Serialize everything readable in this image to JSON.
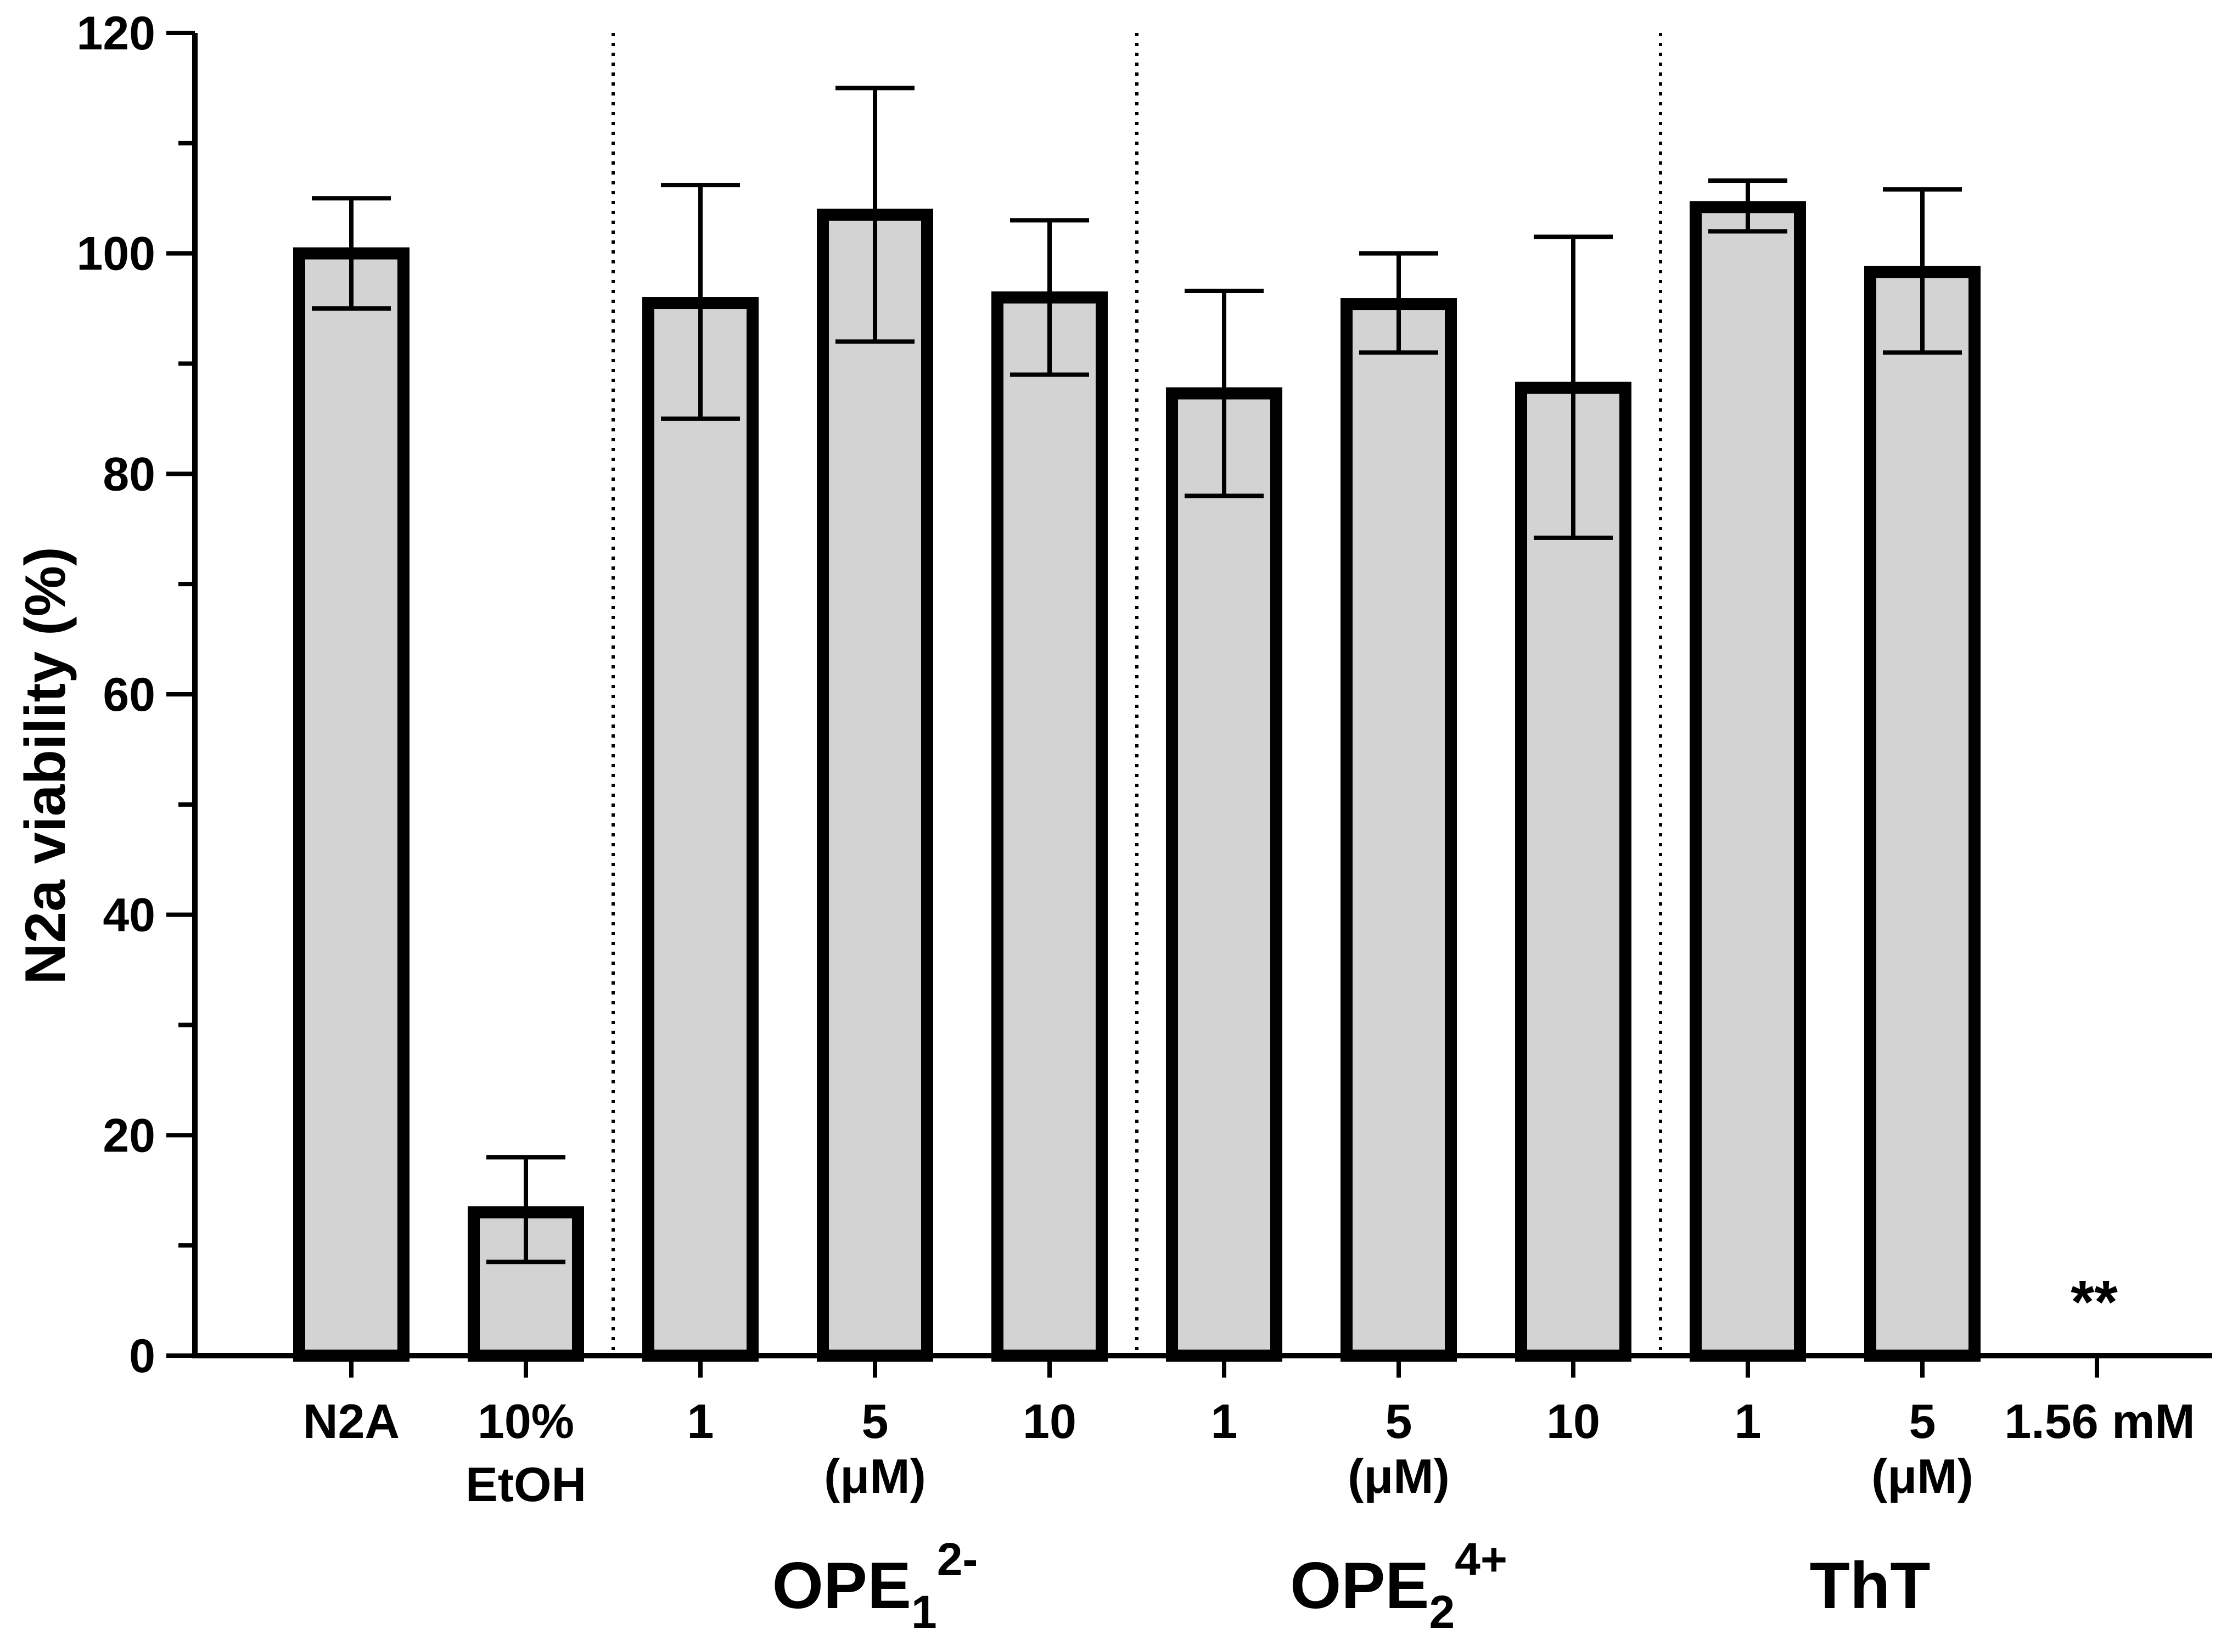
{
  "chart_data": {
    "type": "bar",
    "title": "",
    "xlabel": "",
    "ylabel": "N2a viability (%)",
    "ylim": [
      0,
      120
    ],
    "yticks": [
      0,
      20,
      40,
      60,
      80,
      100,
      120
    ],
    "grid": false,
    "bar_color": "#d3d3d3",
    "edge_color": "#000000",
    "categories": [
      "N2A",
      "10%",
      "1",
      "5",
      "10",
      "1",
      "5",
      "10",
      "1",
      "5",
      "1.56 mM"
    ],
    "category_sublabels": [
      "",
      "EtOH",
      "",
      "",
      "",
      "",
      "",
      "",
      "",
      "",
      ""
    ],
    "values": [
      100,
      13,
      95.5,
      103.5,
      96,
      87.3,
      95.4,
      87.8,
      104.2,
      98.3,
      null
    ],
    "errors": [
      [
        95,
        105
      ],
      [
        8.5,
        18
      ],
      [
        85,
        106.2
      ],
      [
        92,
        115
      ],
      [
        89,
        103
      ],
      [
        78,
        96.6
      ],
      [
        91,
        100
      ],
      [
        74.2,
        101.5
      ],
      [
        102,
        106.6
      ],
      [
        91,
        105.8
      ],
      null
    ],
    "unit_labels": [
      {
        "text": "(μM)",
        "under_category": 3
      },
      {
        "text": "(μM)",
        "under_category": 6
      },
      {
        "text": "(μM)",
        "under_category": 9
      }
    ],
    "groups": [
      {
        "name": "OPE",
        "subscript": "1",
        "superscript": "2-",
        "center_category": 3
      },
      {
        "name": "OPE",
        "subscript": "2",
        "superscript": "4+",
        "center_category": 6
      },
      {
        "name": "ThT",
        "subscript": "",
        "superscript": "",
        "center_category": 8.7
      }
    ],
    "separators_after_category": [
      1,
      4,
      7
    ],
    "annotations": [
      {
        "text": "**",
        "category": 10
      }
    ]
  }
}
